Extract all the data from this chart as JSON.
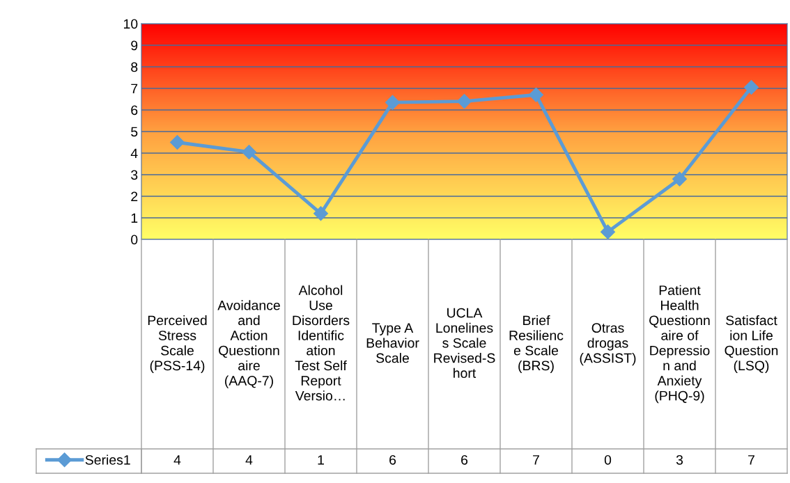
{
  "chart_data": {
    "type": "line",
    "categories": [
      "Perceived Stress Scale (PSS-14)",
      "Avoidance and Action Questionnaire (AAQ-7)",
      "Alcohol Use Disorders Identification Test Self Report Versio…",
      "Type A Behavior Scale",
      "UCLA Loneliness Scale Revised-Short",
      "Brief Resilience Scale (BRS)",
      "Otras drogas (ASSIST)",
      "Patient Health Questionnaire of Depression and Anxiety (PHQ-9)",
      "Satisfaction Life Question (LSQ)"
    ],
    "series": [
      {
        "name": "Series1",
        "color": "#5b9bd5",
        "values": [
          4.5,
          4.05,
          1.2,
          6.35,
          6.4,
          6.7,
          0.35,
          2.8,
          7.05
        ],
        "value_labels": [
          "4",
          "4",
          "1",
          "6",
          "6",
          "7",
          "0",
          "3",
          "7"
        ]
      }
    ],
    "ylim": [
      0,
      10
    ],
    "yticks": [
      0,
      1,
      2,
      3,
      4,
      5,
      6,
      7,
      8,
      9,
      10
    ],
    "grid": "y",
    "legend": "bottom",
    "marker": "diamond",
    "line_style": "solid"
  }
}
